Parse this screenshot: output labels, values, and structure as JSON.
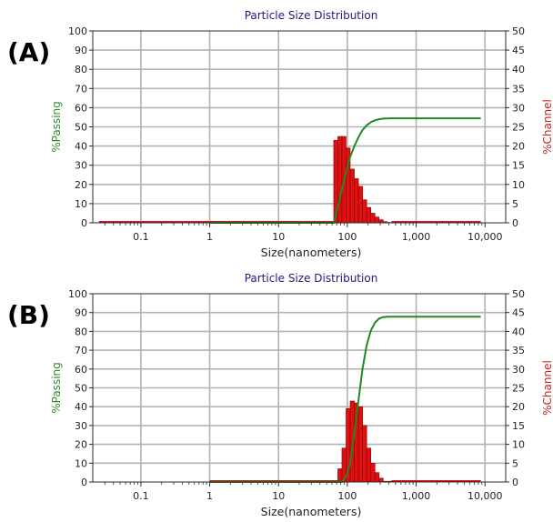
{
  "chart_data": [
    {
      "panel": "(A)",
      "type": "bar",
      "title": "Particle Size Distribution",
      "xlabel": "Size(nanometers)",
      "ylabel_left": "%Passing",
      "ylabel_right": "%Channel",
      "xscale": "log",
      "xlim": [
        0.02,
        20000
      ],
      "ylim_left": [
        0,
        100
      ],
      "ylim_right": [
        0,
        50
      ],
      "x_ticks": [
        "0.1",
        "1",
        "10",
        "100",
        "1,000",
        "10,000"
      ],
      "y_left_ticks": [
        "0",
        "10",
        "20",
        "30",
        "40",
        "50",
        "60",
        "70",
        "80",
        "90",
        "100"
      ],
      "y_right_ticks": [
        "0",
        "5",
        "10",
        "15",
        "20",
        "25",
        "30",
        "35",
        "40",
        "45",
        "50"
      ],
      "grid": true,
      "series": [
        {
          "name": "%Channel",
          "axis": "right",
          "color": "#dd1111",
          "channel_lower_edges": [
            0.0245,
            1.0,
            63.4,
            72.8,
            83.5,
            95.8,
            110,
            126.3,
            145,
            166.5,
            191.1,
            219.4,
            251.9,
            289.2,
            332,
            381,
            437.5,
            8700
          ],
          "values": [
            0,
            0,
            21.5,
            22.5,
            22.5,
            19.5,
            14.0,
            11.5,
            9.5,
            6.0,
            4.0,
            2.5,
            1.5,
            0.8,
            0.3,
            0.1,
            0,
            0
          ]
        },
        {
          "name": "%Passing",
          "axis": "left",
          "color": "#1f8a1f",
          "x": [
            1,
            55,
            63.4,
            72.8,
            83.5,
            95.8,
            110,
            126.3,
            145,
            166.5,
            191.1,
            219.4,
            251.9,
            289.2,
            332,
            381,
            437.5,
            600,
            8700
          ],
          "values": [
            0,
            0,
            0,
            8.6,
            17.6,
            26.6,
            34.4,
            40.0,
            44.6,
            48.4,
            50.8,
            52.4,
            53.4,
            54.0,
            54.3,
            54.4,
            54.44,
            54.44,
            54.44
          ]
        }
      ]
    },
    {
      "panel": "(B)",
      "type": "bar",
      "title": "Particle Size Distribution",
      "xlabel": "Size(nanometers)",
      "ylabel_left": "%Passing",
      "ylabel_right": "%Channel",
      "xscale": "log",
      "xlim": [
        0.02,
        20000
      ],
      "ylim_left": [
        0,
        100
      ],
      "ylim_right": [
        0,
        50
      ],
      "x_ticks": [
        "0.1",
        "1",
        "10",
        "100",
        "1,000",
        "10,000"
      ],
      "y_left_ticks": [
        "0",
        "10",
        "20",
        "30",
        "40",
        "50",
        "60",
        "70",
        "80",
        "90",
        "100"
      ],
      "y_right_ticks": [
        "0",
        "5",
        "10",
        "15",
        "20",
        "25",
        "30",
        "35",
        "40",
        "45",
        "50"
      ],
      "grid": true,
      "series": [
        {
          "name": "%Channel",
          "axis": "right",
          "color": "#dd1111",
          "channel_lower_edges": [
            1.0,
            72.8,
            83.5,
            95.8,
            110,
            126.3,
            145,
            166.5,
            191.1,
            219.4,
            251.9,
            289.2,
            332,
            437.5,
            8700
          ],
          "values": [
            0,
            3.5,
            9.0,
            19.5,
            21.5,
            21.0,
            20.0,
            15.0,
            9.0,
            5.0,
            2.5,
            1.0,
            0.2,
            0,
            0
          ]
        },
        {
          "name": "%Passing",
          "axis": "left",
          "color": "#1f8a1f",
          "x": [
            1,
            72.8,
            83.5,
            95.8,
            110,
            126.3,
            145,
            166.5,
            191.1,
            219.4,
            251.9,
            289.2,
            332,
            381,
            600,
            8700
          ],
          "values": [
            0,
            0,
            0,
            2.8,
            10.0,
            25.8,
            43.2,
            60.2,
            72.8,
            80.4,
            84.6,
            86.8,
            87.6,
            87.8,
            87.8,
            87.8
          ]
        }
      ]
    }
  ]
}
